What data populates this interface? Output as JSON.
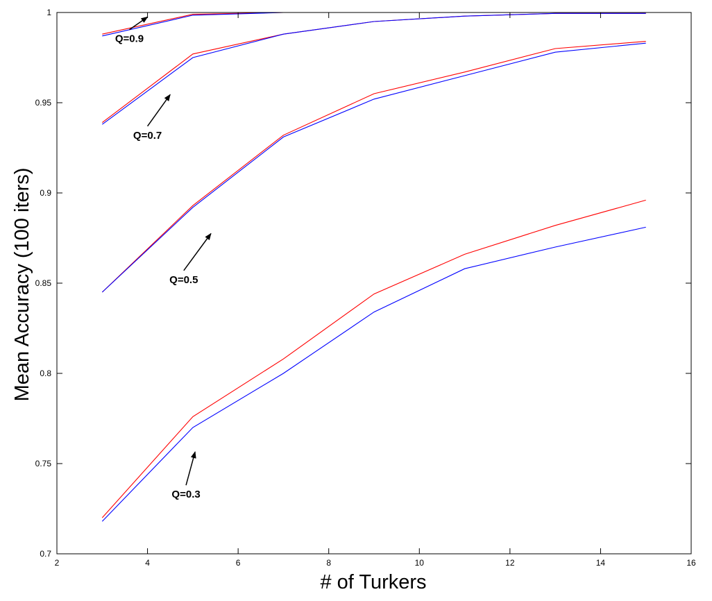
{
  "chart_data": {
    "type": "line",
    "xlabel": "# of Turkers",
    "ylabel": "Mean Accuracy (100 iters)",
    "xlim": [
      2,
      16
    ],
    "ylim": [
      0.7,
      1.0
    ],
    "xticks": [
      "2",
      "4",
      "6",
      "8",
      "10",
      "12",
      "14",
      "16"
    ],
    "yticks": [
      "0.7",
      "0.75",
      "0.8",
      "0.85",
      "0.9",
      "0.95",
      "1"
    ],
    "grid": false,
    "colors": {
      "red": "#ff0000",
      "blue": "#0000ff",
      "axis": "#000000"
    },
    "series": [
      {
        "group": "Q=0.9",
        "color": "#ff0000",
        "x": [
          3,
          5,
          7,
          9
        ],
        "y": [
          0.988,
          0.999,
          1.0,
          1.0
        ]
      },
      {
        "group": "Q=0.9",
        "color": "#0000ff",
        "x": [
          3,
          5,
          7,
          9
        ],
        "y": [
          0.987,
          0.9985,
          1.0,
          1.0
        ]
      },
      {
        "group": "Q=0.7",
        "color": "#ff0000",
        "x": [
          3,
          5,
          7,
          9,
          11,
          13,
          15
        ],
        "y": [
          0.939,
          0.977,
          0.988,
          0.995,
          0.998,
          0.9995,
          0.9995
        ]
      },
      {
        "group": "Q=0.7",
        "color": "#0000ff",
        "x": [
          3,
          5,
          7,
          9,
          11,
          13,
          15
        ],
        "y": [
          0.938,
          0.975,
          0.988,
          0.995,
          0.998,
          0.9995,
          0.9995
        ]
      },
      {
        "group": "Q=0.5",
        "color": "#ff0000",
        "x": [
          3,
          5,
          7,
          9,
          11,
          13,
          15
        ],
        "y": [
          0.845,
          0.893,
          0.932,
          0.955,
          0.967,
          0.98,
          0.984
        ]
      },
      {
        "group": "Q=0.5",
        "color": "#0000ff",
        "x": [
          3,
          5,
          7,
          9,
          11,
          13,
          15
        ],
        "y": [
          0.845,
          0.892,
          0.931,
          0.952,
          0.965,
          0.978,
          0.983
        ]
      },
      {
        "group": "Q=0.3",
        "color": "#ff0000",
        "x": [
          3,
          5,
          7,
          9,
          11,
          13,
          15
        ],
        "y": [
          0.72,
          0.776,
          0.808,
          0.844,
          0.866,
          0.882,
          0.896
        ]
      },
      {
        "group": "Q=0.3",
        "color": "#0000ff",
        "x": [
          3,
          5,
          7,
          9,
          11,
          13,
          15
        ],
        "y": [
          0.718,
          0.77,
          0.8,
          0.834,
          0.858,
          0.87,
          0.881
        ]
      }
    ],
    "annotations": [
      {
        "text": "Q=0.9",
        "arrow_from": [
          3.6,
          0.9905
        ],
        "arrow_to": [
          4.0,
          0.9975
        ]
      },
      {
        "text": "Q=0.7",
        "arrow_from": [
          4.0,
          0.937
        ],
        "arrow_to": [
          4.5,
          0.9545
        ]
      },
      {
        "text": "Q=0.5",
        "arrow_from": [
          4.8,
          0.857
        ],
        "arrow_to": [
          5.4,
          0.8775
        ]
      },
      {
        "text": "Q=0.3",
        "arrow_from": [
          4.85,
          0.738
        ],
        "arrow_to": [
          5.05,
          0.7565
        ]
      }
    ]
  }
}
